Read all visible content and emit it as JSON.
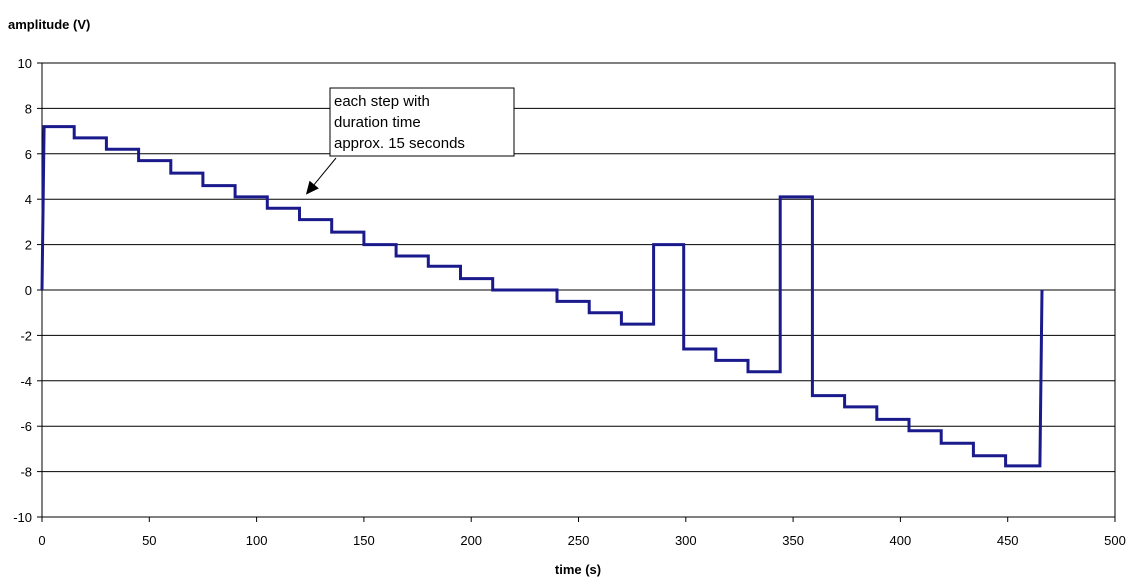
{
  "chart_data": {
    "type": "line",
    "ylabel": "amplitude (V)",
    "xlabel": "time (s)",
    "xlim": [
      0,
      500
    ],
    "ylim": [
      -10,
      10
    ],
    "xticks": [
      "0",
      "50",
      "100",
      "150",
      "200",
      "250",
      "300",
      "350",
      "400",
      "450",
      "500"
    ],
    "yticks": [
      "10",
      "8",
      "6",
      "4",
      "2",
      "0",
      "-2",
      "-4",
      "-6",
      "-8",
      "-10"
    ],
    "grid": "horizontal",
    "series": [
      {
        "color": "#1a1a8c",
        "x": [
          0,
          1,
          15,
          15,
          30,
          30,
          45,
          45,
          60,
          60,
          75,
          75,
          90,
          90,
          105,
          105,
          120,
          120,
          135,
          135,
          150,
          150,
          165,
          165,
          180,
          180,
          195,
          195,
          210,
          210,
          240,
          240,
          255,
          255,
          270,
          270,
          285,
          285,
          299,
          299,
          314,
          314,
          329,
          329,
          344,
          344,
          359,
          359,
          374,
          374,
          389,
          389,
          404,
          404,
          419,
          419,
          434,
          434,
          449,
          449,
          465,
          466
        ],
        "y": [
          0,
          7.2,
          7.2,
          6.7,
          6.7,
          6.2,
          6.2,
          5.7,
          5.7,
          5.15,
          5.15,
          4.6,
          4.6,
          4.1,
          4.1,
          3.6,
          3.6,
          3.1,
          3.1,
          2.55,
          2.55,
          2.0,
          2.0,
          1.5,
          1.5,
          1.05,
          1.05,
          0.5,
          0.5,
          0.0,
          0.0,
          -0.5,
          -0.5,
          -1.0,
          -1.0,
          -1.5,
          -1.5,
          2.0,
          2.0,
          -2.6,
          -2.6,
          -3.1,
          -3.1,
          -3.6,
          -3.6,
          4.1,
          4.1,
          -4.65,
          -4.65,
          -5.15,
          -5.15,
          -5.7,
          -5.7,
          -6.2,
          -6.2,
          -6.75,
          -6.75,
          -7.3,
          -7.3,
          -7.75,
          -7.75,
          0.0
        ]
      }
    ],
    "annotations": [
      {
        "lines": [
          "each step with",
          "duration time",
          "approx. 15 seconds"
        ],
        "arrow_to": [
          123,
          4.2
        ]
      }
    ]
  }
}
